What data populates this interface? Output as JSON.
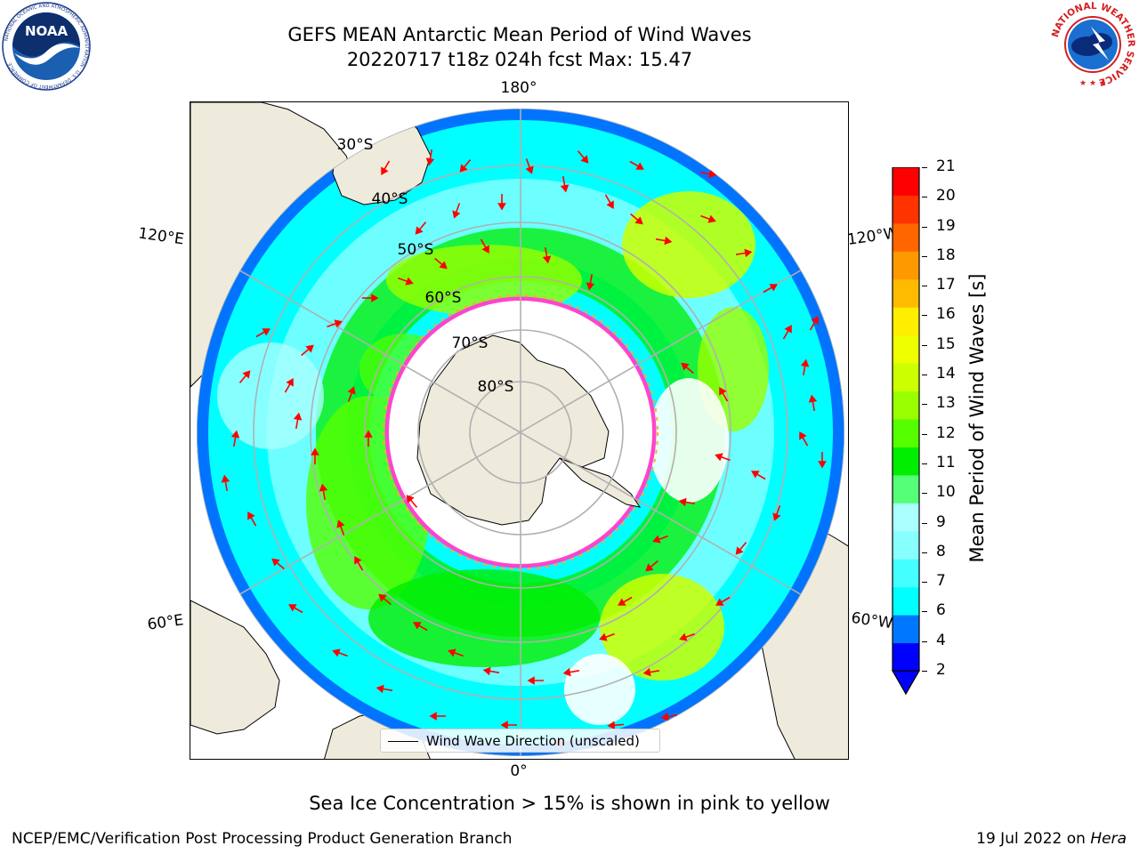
{
  "header": {
    "title_line1": "GEFS MEAN Antarctic Mean Period of Wind Waves",
    "title_line2": "20220717 t18z 024h fcst   Max: 15.47"
  },
  "logos": {
    "left": "NOAA",
    "left_ring_text": "NATIONAL OCEANIC AND ATMOSPHERIC ADMINISTRATION · U.S. DEPARTMENT OF COMMERCE",
    "right_ring_text": "NATIONAL WEATHER SERVICE"
  },
  "map": {
    "projection": "south-polar-stereographic",
    "meridian_labels": {
      "top": "180°",
      "bottom": "0°",
      "upper_left": "120°E",
      "upper_right": "120°W",
      "lower_left": "60°E",
      "lower_right": "60°W"
    },
    "latitude_labels": [
      "30°S",
      "40°S",
      "50°S",
      "60°S",
      "70°S",
      "80°S"
    ],
    "legend_label": "Wind Wave Direction (unscaled)",
    "land_color": "#efebdc",
    "arrow_color": "#ff0000",
    "sea_ice_colors": [
      "#ff44cc",
      "#ffaa33",
      "#ffdd44"
    ]
  },
  "colorbar": {
    "label": "Mean Period of Wind Waves [s]",
    "ticks": [
      "2",
      "4",
      "6",
      "7",
      "8",
      "9",
      "10",
      "11",
      "12",
      "13",
      "14",
      "15",
      "16",
      "17",
      "18",
      "19",
      "20",
      "21"
    ],
    "colors": [
      "#0000ff",
      "#0077ff",
      "#00ffff",
      "#44ffff",
      "#88ffff",
      "#aaffff",
      "#55ff77",
      "#00ee00",
      "#55ff00",
      "#99ff00",
      "#ccff00",
      "#eeff00",
      "#ffee00",
      "#ffbb00",
      "#ff9900",
      "#ff6600",
      "#ff3300",
      "#ff0000"
    ],
    "extend": "min"
  },
  "footer": {
    "note": "Sea Ice Concentration > 15% is shown in pink to yellow",
    "left": "NCEP/EMC/Verification Post Processing Product Generation Branch",
    "right_date": "19 Jul 2022 on",
    "right_host": "Hera"
  }
}
